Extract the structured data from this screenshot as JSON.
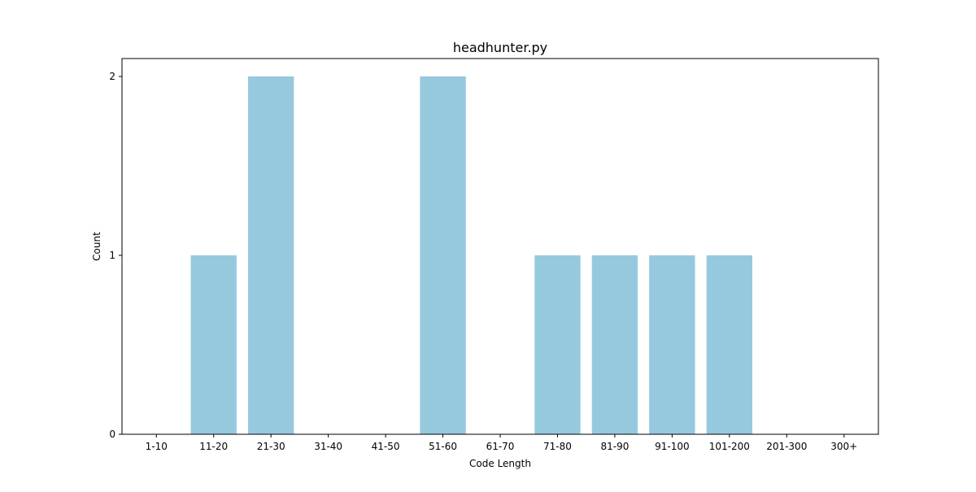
{
  "chart_data": {
    "type": "bar",
    "title": "headhunter.py",
    "xlabel": "Code Length",
    "ylabel": "Count",
    "categories": [
      "1-10",
      "11-20",
      "21-30",
      "31-40",
      "41-50",
      "51-60",
      "61-70",
      "71-80",
      "81-90",
      "91-100",
      "101-200",
      "201-300",
      "300+"
    ],
    "values": [
      0,
      1,
      2,
      0,
      0,
      2,
      0,
      1,
      1,
      1,
      1,
      0,
      0
    ],
    "ylim": [
      0,
      2.1
    ],
    "yticks": [
      "0",
      "1",
      "2"
    ],
    "grid": false,
    "legend": "none",
    "bar_color": "#96c9de"
  }
}
